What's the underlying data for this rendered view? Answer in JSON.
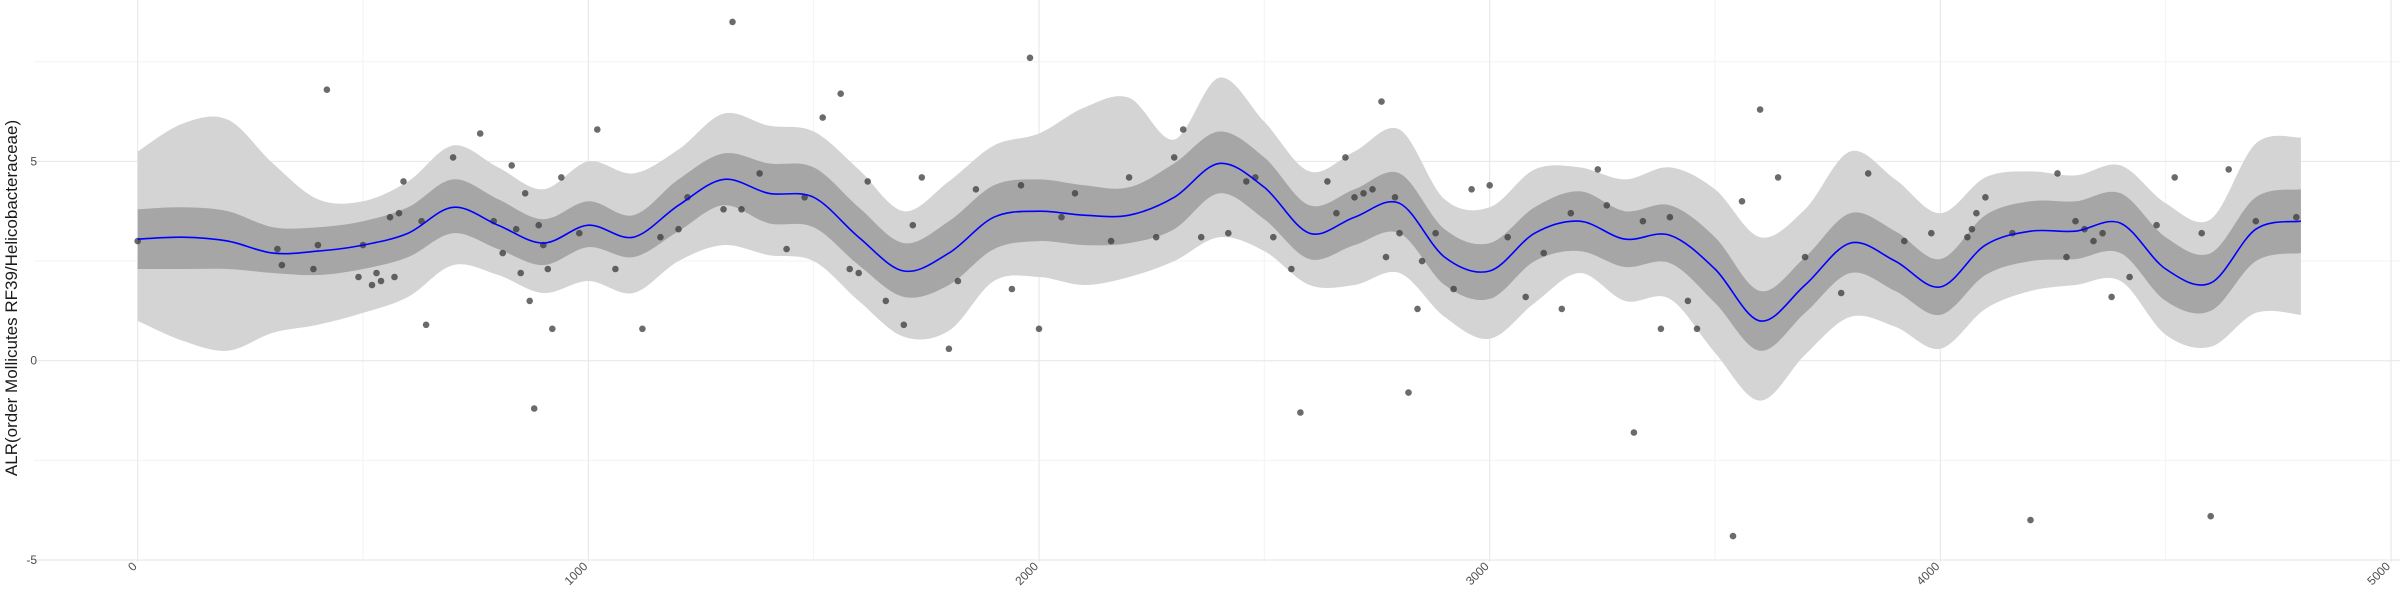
{
  "chart_data": {
    "type": "line",
    "title": "",
    "xlabel": "",
    "ylabel": "ALR(order Mollicutes RF39/Helicobacteraceae)",
    "xlim": [
      -230,
      5020
    ],
    "ylim": [
      -5.05,
      9.05
    ],
    "x_ticks": [
      0,
      1000,
      2000,
      3000,
      4000,
      5000
    ],
    "x_tick_labels": [
      "0",
      "1000",
      "2000",
      "3000",
      "4000",
      "5000"
    ],
    "y_ticks": [
      -5,
      0,
      5
    ],
    "y_tick_labels": [
      "-5",
      "0",
      "5"
    ],
    "grid": true,
    "legend": "none",
    "colors": {
      "line": "#0000ff",
      "inner_band": "#a6a6a6",
      "outer_band": "#d4d4d4",
      "points": "#3a3a3a",
      "grid_major": "#e6e6e6",
      "grid_minor": "#f3f3f3"
    },
    "series": [
      {
        "kind": "fit",
        "x": [
          0,
          100,
          200,
          300,
          400,
          500,
          600,
          700,
          800,
          900,
          1000,
          1100,
          1200,
          1300,
          1400,
          1500,
          1600,
          1700,
          1800,
          1900,
          2000,
          2100,
          2200,
          2300,
          2400,
          2500,
          2600,
          2700,
          2800,
          2900,
          3000,
          3100,
          3200,
          3300,
          3400,
          3500,
          3600,
          3700,
          3800,
          3900,
          4000,
          4100,
          4200,
          4300,
          4400,
          4500,
          4600,
          4700,
          4800
        ],
        "y": [
          3.05,
          3.1,
          3.0,
          2.7,
          2.75,
          2.9,
          3.2,
          3.85,
          3.4,
          2.95,
          3.4,
          3.1,
          3.9,
          4.55,
          4.2,
          4.1,
          3.1,
          2.25,
          2.7,
          3.6,
          3.75,
          3.65,
          3.65,
          4.1,
          4.95,
          4.35,
          3.2,
          3.6,
          3.95,
          2.6,
          2.25,
          3.2,
          3.5,
          3.05,
          3.15,
          2.3,
          1.0,
          1.9,
          2.95,
          2.5,
          1.85,
          2.9,
          3.25,
          3.25,
          3.45,
          2.3,
          1.95,
          3.3,
          3.5
        ],
        "inner_lower": [
          2.3,
          2.3,
          2.3,
          2.2,
          2.15,
          2.3,
          2.6,
          3.2,
          2.8,
          2.4,
          2.85,
          2.6,
          3.25,
          3.9,
          3.45,
          3.35,
          2.4,
          1.6,
          1.9,
          2.8,
          3.0,
          2.9,
          2.95,
          3.3,
          4.2,
          3.55,
          2.55,
          2.9,
          3.2,
          1.9,
          1.55,
          2.5,
          2.75,
          2.35,
          2.45,
          1.45,
          0.25,
          1.2,
          2.2,
          1.75,
          1.15,
          2.15,
          2.5,
          2.55,
          2.7,
          1.5,
          1.25,
          2.5,
          2.7
        ],
        "inner_upper": [
          3.8,
          3.85,
          3.75,
          3.35,
          3.35,
          3.5,
          3.85,
          4.55,
          4.05,
          3.55,
          4.0,
          3.65,
          4.55,
          5.2,
          4.95,
          4.85,
          3.85,
          2.95,
          3.5,
          4.4,
          4.55,
          4.4,
          4.35,
          4.95,
          5.75,
          5.1,
          3.9,
          4.3,
          4.7,
          3.3,
          2.95,
          3.85,
          4.25,
          3.75,
          3.9,
          3.1,
          1.75,
          2.6,
          3.7,
          3.25,
          2.55,
          3.65,
          4.0,
          4.0,
          4.2,
          3.1,
          2.7,
          4.1,
          4.3
        ],
        "outer_lower": [
          1.0,
          0.5,
          0.25,
          0.7,
          0.9,
          1.2,
          1.6,
          2.4,
          2.15,
          1.7,
          2.0,
          1.7,
          2.5,
          2.9,
          2.65,
          2.5,
          1.5,
          0.6,
          0.75,
          2.0,
          2.1,
          1.9,
          2.1,
          2.5,
          3.1,
          2.75,
          1.9,
          1.9,
          2.2,
          1.1,
          0.55,
          1.45,
          2.2,
          1.5,
          1.55,
          0.2,
          -1.0,
          0.15,
          1.1,
          0.85,
          0.3,
          1.3,
          1.75,
          1.9,
          2.0,
          0.65,
          0.35,
          1.2,
          1.15
        ],
        "outer_upper": [
          5.25,
          5.95,
          6.05,
          4.95,
          4.05,
          4.0,
          4.5,
          5.4,
          4.85,
          4.3,
          5.0,
          4.7,
          5.3,
          6.2,
          5.9,
          5.75,
          4.8,
          3.75,
          4.5,
          5.4,
          5.7,
          6.35,
          6.6,
          5.55,
          7.1,
          6.0,
          4.75,
          5.25,
          5.8,
          4.05,
          3.85,
          4.8,
          4.85,
          4.55,
          4.85,
          4.3,
          3.1,
          3.8,
          5.25,
          4.55,
          3.7,
          4.6,
          4.75,
          4.65,
          4.9,
          3.95,
          3.55,
          5.45,
          5.6
        ]
      },
      {
        "kind": "points",
        "x": [
          0,
          310,
          320,
          390,
          400,
          420,
          490,
          500,
          520,
          530,
          540,
          560,
          570,
          580,
          590,
          630,
          640,
          700,
          760,
          790,
          810,
          830,
          840,
          850,
          860,
          870,
          880,
          890,
          900,
          910,
          920,
          940,
          980,
          1020,
          1060,
          1120,
          1160,
          1200,
          1220,
          1300,
          1320,
          1340,
          1380,
          1440,
          1480,
          1520,
          1560,
          1580,
          1600,
          1620,
          1660,
          1700,
          1720,
          1740,
          1800,
          1820,
          1860,
          1940,
          1960,
          1980,
          2000,
          2050,
          2080,
          2160,
          2200,
          2260,
          2300,
          2320,
          2360,
          2420,
          2460,
          2480,
          2520,
          2560,
          2580,
          2640,
          2660,
          2680,
          2700,
          2720,
          2740,
          2760,
          2770,
          2790,
          2800,
          2820,
          2840,
          2850,
          2880,
          2920,
          2960,
          3000,
          3040,
          3080,
          3120,
          3160,
          3180,
          3240,
          3260,
          3320,
          3340,
          3380,
          3400,
          3440,
          3460,
          3540,
          3560,
          3600,
          3640,
          3700,
          3780,
          3840,
          3920,
          3980,
          4060,
          4070,
          4080,
          4100,
          4160,
          4200,
          4260,
          4280,
          4300,
          4320,
          4340,
          4360,
          4380,
          4420,
          4480,
          4520,
          4580,
          4600,
          4640,
          4700,
          4790
        ],
        "y": [
          3.0,
          2.8,
          2.4,
          2.3,
          2.9,
          6.8,
          2.1,
          2.9,
          1.9,
          2.2,
          2.0,
          3.6,
          2.1,
          3.7,
          4.5,
          3.5,
          0.9,
          5.1,
          5.7,
          3.5,
          2.7,
          4.9,
          3.3,
          2.2,
          4.2,
          1.5,
          -1.2,
          3.4,
          2.9,
          2.3,
          0.8,
          4.6,
          3.2,
          5.8,
          2.3,
          0.8,
          3.1,
          3.3,
          4.1,
          3.8,
          8.5,
          3.8,
          4.7,
          2.8,
          4.1,
          6.1,
          6.7,
          2.3,
          2.2,
          4.5,
          1.5,
          0.9,
          3.4,
          4.6,
          0.3,
          2.0,
          4.3,
          1.8,
          4.4,
          7.6,
          0.8,
          3.6,
          4.2,
          3.0,
          4.6,
          3.1,
          5.1,
          5.8,
          3.1,
          3.2,
          4.5,
          4.6,
          3.1,
          2.3,
          -1.3,
          4.5,
          3.7,
          5.1,
          4.1,
          4.2,
          4.3,
          6.5,
          2.6,
          4.1,
          3.2,
          -0.8,
          1.3,
          2.5,
          3.2,
          1.8,
          4.3,
          4.4,
          3.1,
          1.6,
          2.7,
          1.3,
          3.7,
          4.8,
          3.9,
          -1.8,
          3.5,
          0.8,
          3.6,
          1.5,
          0.8,
          -4.4,
          4.0,
          6.3,
          4.6,
          2.6,
          1.7,
          4.7,
          3.0,
          3.2,
          3.1,
          3.3,
          3.7,
          4.1,
          3.2,
          -4.0,
          4.7,
          2.6,
          3.5,
          3.3,
          3.0,
          3.2,
          1.6,
          2.1,
          3.4,
          4.6,
          3.2,
          -3.9,
          4.8,
          3.5,
          3.6
        ]
      }
    ]
  }
}
